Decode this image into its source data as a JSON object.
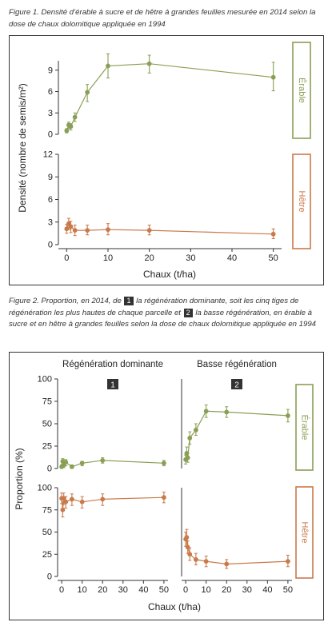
{
  "figure1": {
    "caption": "Figure 1. Densité d’érable à sucre et de hêtre à grandes feuilles mesurée en 2014 selon la dose de chaux dolomitique appliquée en 1994",
    "chart_data": {
      "type": "line",
      "facets": [
        "Érable",
        "Hêtre"
      ],
      "xlabel": "Chaux (t/ha)",
      "ylabel": "Densité (nombre de semis/m²)",
      "xlim": [
        -2,
        52
      ],
      "xticks": [
        "0",
        "10",
        "20",
        "30",
        "40",
        "50"
      ],
      "panels": [
        {
          "label": "Érable",
          "color": "#8a9f55",
          "ylim": [
            0,
            12
          ],
          "yticks": [
            "0",
            "3",
            "6",
            "9"
          ],
          "points": [
            {
              "x": 0,
              "y": 0.5,
              "lo": 0.2,
              "hi": 0.8
            },
            {
              "x": 0.5,
              "y": 1.3,
              "lo": 0.8,
              "hi": 1.7
            },
            {
              "x": 1,
              "y": 1.1,
              "lo": 0.6,
              "hi": 1.5
            },
            {
              "x": 2,
              "y": 2.4,
              "lo": 1.8,
              "hi": 3.0
            },
            {
              "x": 5,
              "y": 5.9,
              "lo": 4.6,
              "hi": 7.0
            },
            {
              "x": 10,
              "y": 9.6,
              "lo": 7.9,
              "hi": 11.3
            },
            {
              "x": 20,
              "y": 9.9,
              "lo": 8.6,
              "hi": 11.1
            },
            {
              "x": 50,
              "y": 8.0,
              "lo": 6.1,
              "hi": 10.1
            }
          ]
        },
        {
          "label": "Hêtre",
          "color": "#c97a4b",
          "ylim": [
            0,
            12
          ],
          "yticks": [
            "0",
            "3",
            "6",
            "9",
            "12"
          ],
          "points": [
            {
              "x": 0,
              "y": 2.1,
              "lo": 1.5,
              "hi": 2.7
            },
            {
              "x": 0.5,
              "y": 2.8,
              "lo": 2.0,
              "hi": 3.5
            },
            {
              "x": 1,
              "y": 2.4,
              "lo": 1.6,
              "hi": 3.1
            },
            {
              "x": 2,
              "y": 1.9,
              "lo": 1.2,
              "hi": 2.6
            },
            {
              "x": 5,
              "y": 1.9,
              "lo": 1.3,
              "hi": 2.6
            },
            {
              "x": 10,
              "y": 2.0,
              "lo": 1.3,
              "hi": 2.8
            },
            {
              "x": 20,
              "y": 1.9,
              "lo": 1.3,
              "hi": 2.6
            },
            {
              "x": 50,
              "y": 1.4,
              "lo": 0.8,
              "hi": 2.1
            }
          ]
        }
      ]
    }
  },
  "figure2": {
    "caption_parts": {
      "a": "Figure 2. Proportion, en 2014, de",
      "b": "la régénération dominante, soit les cinq tiges de régénération les plus hautes de chaque parcelle et",
      "c": "la basse régénération, en érable à sucre et en hêtre à grandes feuilles selon la dose de chaux dolomitique appliquée en 1994"
    },
    "chart_data": {
      "type": "line",
      "columns": [
        {
          "title": "Régénération dominante",
          "badge": "1"
        },
        {
          "title": "Basse régénération",
          "badge": "2"
        }
      ],
      "rows": [
        {
          "label": "Érable",
          "color": "#8a9f55"
        },
        {
          "label": "Hêtre",
          "color": "#c97a4b"
        }
      ],
      "xlabel": "Chaux (t/ha)",
      "ylabel": "Proportion (%)",
      "xlim": [
        -2,
        52
      ],
      "xticks": [
        "0",
        "10",
        "20",
        "30",
        "40",
        "50"
      ],
      "ylim": [
        0,
        100
      ],
      "yticks_top": [
        "0",
        "25",
        "50",
        "75",
        "100"
      ],
      "yticks_bottom": [
        "0",
        "25",
        "50",
        "75",
        "100"
      ],
      "panels": [
        {
          "row": 0,
          "col": 0,
          "points": [
            {
              "x": 0,
              "y": 2,
              "lo": 0,
              "hi": 4
            },
            {
              "x": 0.5,
              "y": 8,
              "lo": 5,
              "hi": 11
            },
            {
              "x": 1,
              "y": 4,
              "lo": 1,
              "hi": 7
            },
            {
              "x": 2,
              "y": 7,
              "lo": 3,
              "hi": 10
            },
            {
              "x": 5,
              "y": 2,
              "lo": 0,
              "hi": 4
            },
            {
              "x": 10,
              "y": 6,
              "lo": 3,
              "hi": 8
            },
            {
              "x": 20,
              "y": 9,
              "lo": 6,
              "hi": 12
            },
            {
              "x": 50,
              "y": 6,
              "lo": 3,
              "hi": 9
            }
          ]
        },
        {
          "row": 0,
          "col": 1,
          "points": [
            {
              "x": 0,
              "y": 10,
              "lo": 5,
              "hi": 15
            },
            {
              "x": 0.5,
              "y": 17,
              "lo": 11,
              "hi": 24
            },
            {
              "x": 1,
              "y": 12,
              "lo": 7,
              "hi": 17
            },
            {
              "x": 2,
              "y": 34,
              "lo": 27,
              "hi": 41
            },
            {
              "x": 5,
              "y": 43,
              "lo": 37,
              "hi": 50
            },
            {
              "x": 10,
              "y": 64,
              "lo": 57,
              "hi": 71
            },
            {
              "x": 20,
              "y": 63,
              "lo": 57,
              "hi": 69
            },
            {
              "x": 50,
              "y": 59,
              "lo": 52,
              "hi": 66
            }
          ]
        },
        {
          "row": 1,
          "col": 0,
          "points": [
            {
              "x": 0,
              "y": 88,
              "lo": 82,
              "hi": 94
            },
            {
              "x": 0.5,
              "y": 75,
              "lo": 67,
              "hi": 84
            },
            {
              "x": 1,
              "y": 88,
              "lo": 81,
              "hi": 94
            },
            {
              "x": 2,
              "y": 84,
              "lo": 77,
              "hi": 90
            },
            {
              "x": 5,
              "y": 87,
              "lo": 80,
              "hi": 93
            },
            {
              "x": 10,
              "y": 84,
              "lo": 77,
              "hi": 90
            },
            {
              "x": 20,
              "y": 87,
              "lo": 80,
              "hi": 93
            },
            {
              "x": 50,
              "y": 89,
              "lo": 83,
              "hi": 95
            }
          ]
        },
        {
          "row": 1,
          "col": 1,
          "points": [
            {
              "x": 0,
              "y": 42,
              "lo": 34,
              "hi": 50
            },
            {
              "x": 0.5,
              "y": 44,
              "lo": 36,
              "hi": 53
            },
            {
              "x": 1,
              "y": 33,
              "lo": 26,
              "hi": 40
            },
            {
              "x": 2,
              "y": 25,
              "lo": 18,
              "hi": 32
            },
            {
              "x": 5,
              "y": 19,
              "lo": 13,
              "hi": 26
            },
            {
              "x": 10,
              "y": 17,
              "lo": 11,
              "hi": 23
            },
            {
              "x": 20,
              "y": 14,
              "lo": 9,
              "hi": 19
            },
            {
              "x": 50,
              "y": 17,
              "lo": 11,
              "hi": 24
            }
          ]
        }
      ]
    }
  }
}
